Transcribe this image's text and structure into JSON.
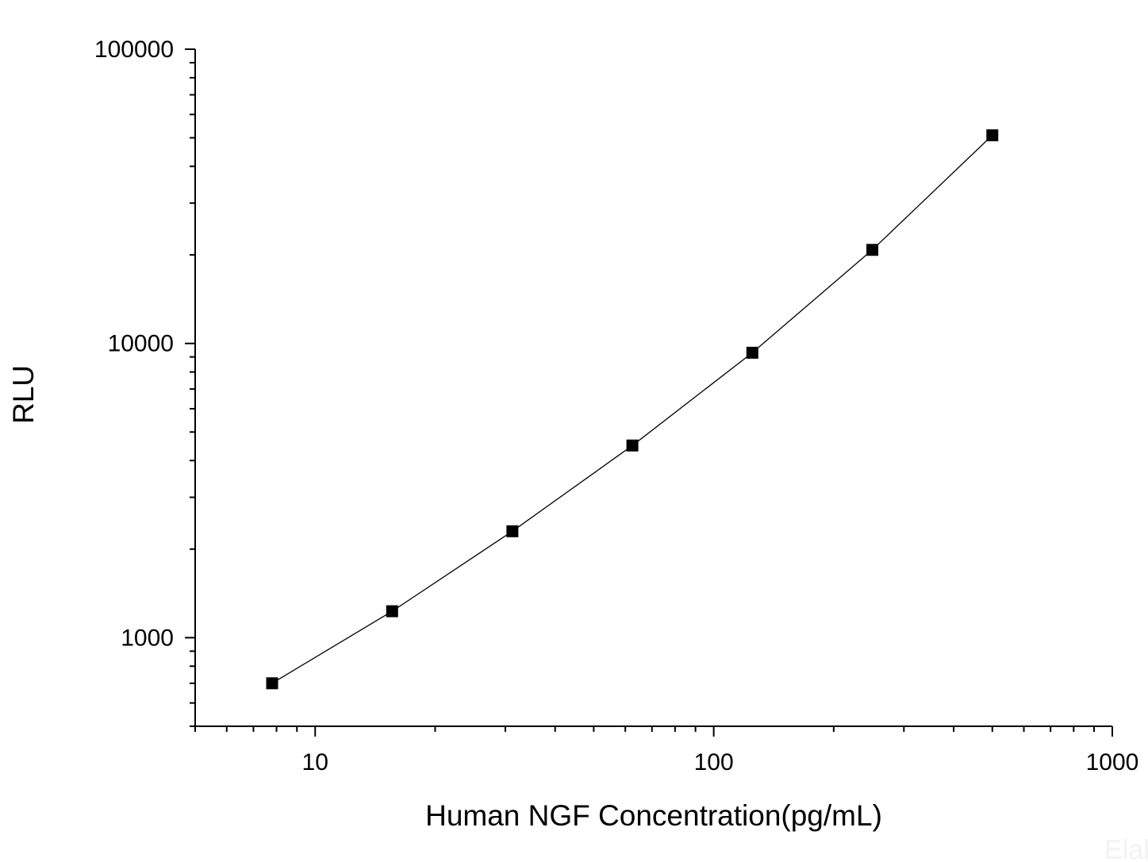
{
  "chart_data": {
    "type": "line",
    "xlabel": "Human NGF Concentration(pg/mL)",
    "ylabel": "RLU",
    "x_scale": "log",
    "y_scale": "log",
    "xlim": [
      5,
      1000
    ],
    "ylim": [
      500,
      100000
    ],
    "x_ticks": [
      {
        "value": 10,
        "label": "10"
      },
      {
        "value": 100,
        "label": "100"
      },
      {
        "value": 1000,
        "label": "1000"
      }
    ],
    "y_ticks": [
      {
        "value": 1000,
        "label": "1000"
      },
      {
        "value": 10000,
        "label": "10000"
      },
      {
        "value": 100000,
        "label": "100000"
      }
    ],
    "grid": false,
    "legend": "none",
    "marker": "square",
    "colors": {
      "line": "#000000",
      "marker": "#000000",
      "axis": "#000000"
    },
    "series": [
      {
        "x": [
          7.8,
          15.6,
          31.25,
          62.5,
          125,
          250,
          500
        ],
        "y": [
          700,
          1230,
          2300,
          4500,
          9300,
          20800,
          51000
        ]
      }
    ]
  },
  "watermark": "Elab"
}
